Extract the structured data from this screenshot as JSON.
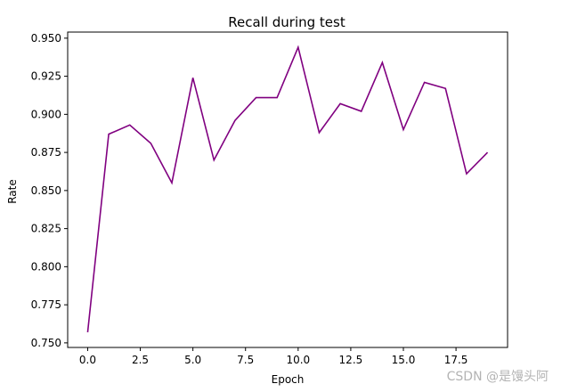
{
  "chart_data": {
    "type": "line",
    "title": "Recall during test",
    "xlabel": "Epoch",
    "ylabel": "Rate",
    "x": [
      0,
      1,
      2,
      3,
      4,
      5,
      6,
      7,
      8,
      9,
      10,
      11,
      12,
      13,
      14,
      15,
      16,
      17,
      18,
      19
    ],
    "series": [
      {
        "values": [
          0.757,
          0.887,
          0.893,
          0.881,
          0.855,
          0.924,
          0.87,
          0.896,
          0.911,
          0.911,
          0.944,
          0.888,
          0.907,
          0.902,
          0.934,
          0.89,
          0.921,
          0.917,
          0.861,
          0.875
        ]
      }
    ],
    "xlim": [
      -0.95,
      19.95
    ],
    "ylim": [
      0.747,
      0.954
    ],
    "xticks": [
      0.0,
      2.5,
      5.0,
      7.5,
      10.0,
      12.5,
      15.0,
      17.5
    ],
    "xtick_labels": [
      "0.0",
      "2.5",
      "5.0",
      "7.5",
      "10.0",
      "12.5",
      "15.0",
      "17.5"
    ],
    "yticks": [
      0.75,
      0.775,
      0.8,
      0.825,
      0.85,
      0.875,
      0.9,
      0.925,
      0.95
    ],
    "ytick_labels": [
      "0.750",
      "0.775",
      "0.800",
      "0.825",
      "0.850",
      "0.875",
      "0.900",
      "0.925",
      "0.950"
    ],
    "line_color": "#800080",
    "grid": false,
    "legend": "none"
  },
  "watermark": "CSDN @是馒头阿"
}
